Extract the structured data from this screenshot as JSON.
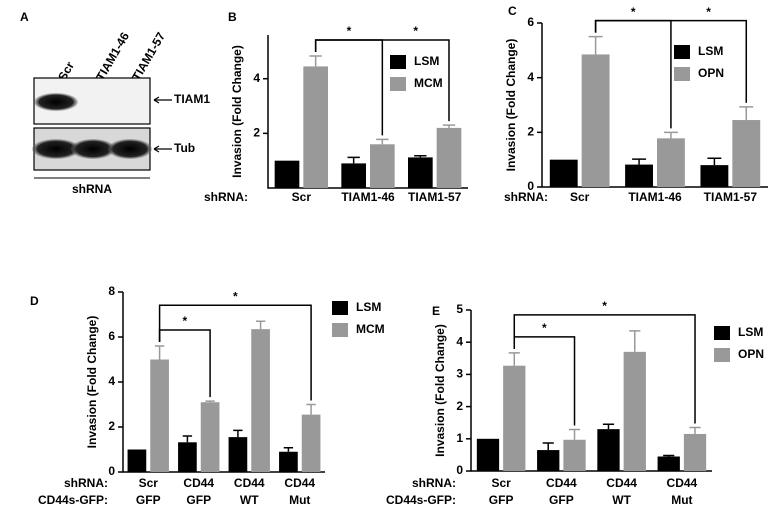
{
  "blot": {
    "label": "A",
    "lanes": [
      "Scr",
      "TIAM1-46",
      "TIAM1-57"
    ],
    "rows": [
      "TIAM1",
      "Tub"
    ],
    "footer": "shRNA"
  },
  "chart_data": [
    {
      "type": "bar",
      "label": "B",
      "ylabel": "Invasion (Fold Change)",
      "category_labels": [
        "shRNA:"
      ],
      "categories": [
        [
          "Scr"
        ],
        [
          "TIAM1-46"
        ],
        [
          "TIAM1-57"
        ]
      ],
      "series": [
        {
          "name": "LSM",
          "color": "#000000",
          "values": [
            1,
            0.9,
            1.12
          ],
          "errors": [
            0,
            0.22,
            0.06
          ]
        },
        {
          "name": "MCM",
          "color": "#999999",
          "values": [
            4.45,
            1.6,
            2.2
          ],
          "errors": [
            0.38,
            0.18,
            0.1
          ]
        }
      ],
      "ylim": [
        0,
        5.6
      ],
      "yticks": [
        2,
        4
      ],
      "brackets": [
        {
          "between": [
            0,
            1
          ],
          "label": "*"
        },
        {
          "between": [
            0,
            2
          ],
          "label": "*"
        }
      ]
    },
    {
      "type": "bar",
      "label": "C",
      "ylabel": "Invasion (Fold Change)",
      "category_labels": [
        "shRNA:"
      ],
      "categories": [
        [
          "Scr"
        ],
        [
          "TIAM1-46"
        ],
        [
          "TIAM1-57"
        ]
      ],
      "series": [
        {
          "name": "LSM",
          "color": "#000000",
          "values": [
            1,
            0.82,
            0.8
          ],
          "errors": [
            0,
            0.2,
            0.25
          ]
        },
        {
          "name": "OPN",
          "color": "#999999",
          "values": [
            4.85,
            1.78,
            2.45
          ],
          "errors": [
            0.65,
            0.22,
            0.48
          ]
        }
      ],
      "ylim": [
        0,
        6
      ],
      "yticks": [
        0,
        2,
        4,
        6
      ],
      "brackets": [
        {
          "between": [
            0,
            1
          ],
          "label": "*"
        },
        {
          "between": [
            0,
            2
          ],
          "label": "*"
        }
      ]
    },
    {
      "type": "bar",
      "label": "D",
      "ylabel": "Invasion (Fold Change)",
      "category_labels": [
        "shRNA:",
        "CD44s-GFP:"
      ],
      "categories": [
        [
          "Scr",
          "GFP"
        ],
        [
          "CD44",
          "GFP"
        ],
        [
          "CD44",
          "WT"
        ],
        [
          "CD44",
          "Mut"
        ]
      ],
      "series": [
        {
          "name": "LSM",
          "color": "#000000",
          "values": [
            1,
            1.32,
            1.55,
            0.9
          ],
          "errors": [
            0,
            0.28,
            0.3,
            0.18
          ]
        },
        {
          "name": "MCM",
          "color": "#999999",
          "values": [
            5.0,
            3.1,
            6.35,
            2.55
          ],
          "errors": [
            0.6,
            0.05,
            0.35,
            0.45
          ]
        }
      ],
      "ylim": [
        0,
        8
      ],
      "yticks": [
        0,
        2,
        4,
        6,
        8
      ],
      "brackets": [
        {
          "between": [
            0,
            1
          ],
          "label": "*"
        },
        {
          "between": [
            0,
            3
          ],
          "label": "*"
        }
      ]
    },
    {
      "type": "bar",
      "label": "E",
      "ylabel": "Invasion (Fold Change)",
      "category_labels": [
        "shRNA:",
        "CD44s-GFP:"
      ],
      "categories": [
        [
          "Scr",
          "GFP"
        ],
        [
          "CD44",
          "GFP"
        ],
        [
          "CD44",
          "WT"
        ],
        [
          "CD44",
          "Mut"
        ]
      ],
      "series": [
        {
          "name": "LSM",
          "color": "#000000",
          "values": [
            1,
            0.65,
            1.3,
            0.45
          ],
          "errors": [
            0,
            0.22,
            0.15,
            0.03
          ]
        },
        {
          "name": "OPN",
          "color": "#999999",
          "values": [
            3.27,
            0.97,
            3.7,
            1.15
          ],
          "errors": [
            0.4,
            0.32,
            0.65,
            0.2
          ]
        }
      ],
      "ylim": [
        0,
        5
      ],
      "yticks": [
        0,
        1,
        2,
        3,
        4,
        5
      ],
      "brackets": [
        {
          "between": [
            0,
            1
          ],
          "label": "*"
        },
        {
          "between": [
            0,
            3
          ],
          "label": "*"
        }
      ]
    }
  ]
}
